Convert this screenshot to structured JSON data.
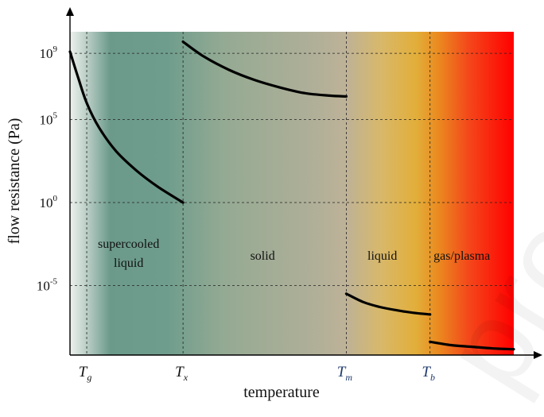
{
  "chart_data": {
    "type": "line",
    "title": "",
    "xlabel": "temperature",
    "ylabel": "flow resistance (Pa)",
    "y_scale": "log",
    "ylim_exponent": [
      -9.2,
      10.3
    ],
    "ylim": [
      6.3e-10,
      20000000000.0
    ],
    "y_ticks": [
      {
        "base": "10",
        "exp": "9",
        "value": 1000000000.0
      },
      {
        "base": "10",
        "exp": "5",
        "value": 100000.0
      },
      {
        "base": "10",
        "exp": "0",
        "value": 1
      },
      {
        "base": "10",
        "exp": "-5",
        "value": 1e-05
      }
    ],
    "x_ticks": [
      {
        "letter": "T",
        "sub": "g",
        "color": "#111111",
        "t": 0.2
      },
      {
        "letter": "T",
        "sub": "x",
        "color": "#111111",
        "t": 1.35
      },
      {
        "letter": "T",
        "sub": "m",
        "color": "#1f3a6e",
        "t": 3.3
      },
      {
        "letter": "T",
        "sub": "b",
        "color": "#1f3a6e",
        "t": 4.3
      }
    ],
    "x_range": [
      0,
      5.3
    ],
    "grid": true,
    "regions": [
      {
        "lines": [
          "supercooled",
          "liquid"
        ],
        "t": 0.7
      },
      {
        "lines": [
          "solid"
        ],
        "t": 2.3
      },
      {
        "lines": [
          "liquid"
        ],
        "t": 3.73
      },
      {
        "lines": [
          "gas/plasma"
        ],
        "t": 4.68
      }
    ],
    "series": [
      {
        "points": [
          [
            0.0,
            9.1
          ],
          [
            0.1,
            7.5
          ],
          [
            0.2,
            6.0
          ],
          [
            0.35,
            4.5
          ],
          [
            0.55,
            3.1
          ],
          [
            0.8,
            1.9
          ],
          [
            1.05,
            0.95
          ],
          [
            1.35,
            0.0
          ]
        ]
      },
      {
        "points": [
          [
            1.35,
            9.7
          ],
          [
            1.6,
            8.8
          ],
          [
            1.9,
            8.0
          ],
          [
            2.2,
            7.4
          ],
          [
            2.5,
            6.95
          ],
          [
            2.8,
            6.6
          ],
          [
            3.1,
            6.45
          ],
          [
            3.3,
            6.4
          ]
        ]
      },
      {
        "points": [
          [
            3.3,
            -5.5
          ],
          [
            3.5,
            -6.0
          ],
          [
            3.7,
            -6.3
          ],
          [
            3.9,
            -6.5
          ],
          [
            4.1,
            -6.65
          ],
          [
            4.3,
            -6.75
          ]
        ]
      },
      {
        "points": [
          [
            4.3,
            -8.4
          ],
          [
            4.55,
            -8.6
          ],
          [
            4.8,
            -8.7
          ],
          [
            5.05,
            -8.8
          ],
          [
            5.3,
            -8.85
          ]
        ]
      }
    ],
    "gradient_colors": [
      "#f2f4f2",
      "#5f9485",
      "#6e9e8d",
      "#94aa92",
      "#b4b098",
      "#c6b38c",
      "#dcb75c",
      "#e8a020",
      "#f25a10",
      "#ff0000"
    ],
    "colors": {
      "curve": "#000000",
      "axis": "#000000"
    }
  },
  "watermark": "proof"
}
